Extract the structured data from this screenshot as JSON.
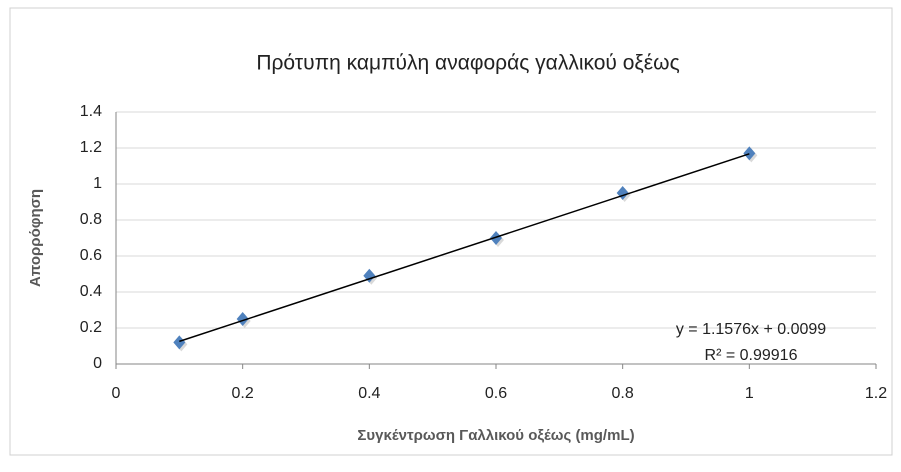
{
  "chart_data": {
    "type": "scatter",
    "title": "Πρότυπη καμπύλη αναφοράς γαλλικού οξέως",
    "x_label": "Συγκέντρωση Γαλλικού οξέως (mg/mL)",
    "y_label": "Απορρόφηση",
    "series": [
      {
        "color": "#4f81bd",
        "x": [
          0.1,
          0.2,
          0.4,
          0.6,
          0.8,
          1.0
        ],
        "values": [
          0.12,
          0.25,
          0.49,
          0.7,
          0.95,
          1.17
        ]
      }
    ],
    "trendline": {
      "slope": 1.1576,
      "intercept": 0.0099,
      "color": "#000000",
      "equation": "y = 1.1576x + 0.0099",
      "r2_label": "R² = 0.99916"
    },
    "xlim": [
      0,
      1.2
    ],
    "xticks": [
      0,
      0.2,
      0.4,
      0.6,
      0.8,
      1,
      1.2
    ],
    "ylim": [
      0,
      1.4
    ],
    "yticks": [
      0,
      0.2,
      0.4,
      0.6,
      0.8,
      1,
      1.2,
      1.4
    ],
    "grid": true
  }
}
